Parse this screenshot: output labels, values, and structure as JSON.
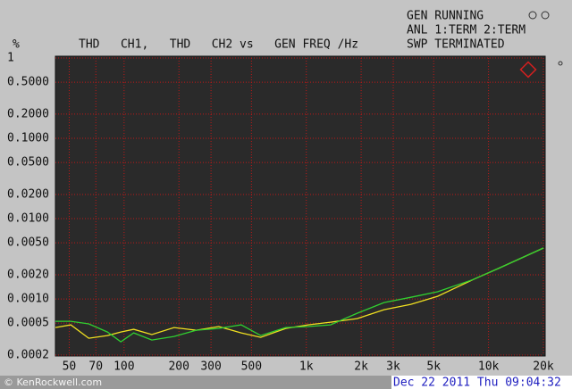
{
  "chart_data": {
    "type": "line",
    "title": "THD   CH1,   THD   CH2 vs   GEN FREQ /Hz",
    "ylabel": "%",
    "status": [
      "GEN RUNNING",
      "ANL 1:TERM 2:TERM",
      "SWP TERMINATED"
    ],
    "watermark": "© KenRockwell.com",
    "timestamp": "Dec 22 2011 Thu 09:04:32",
    "xscale": "log",
    "yscale": "log",
    "grid": true,
    "xlim": [
      42,
      20000
    ],
    "ylim": [
      0.0002,
      1
    ],
    "xticks": [
      50,
      70,
      100,
      200,
      300,
      500,
      {
        "value": 1000,
        "label": "1k"
      },
      {
        "value": 2000,
        "label": "2k"
      },
      {
        "value": 3000,
        "label": "3k"
      },
      {
        "value": 5000,
        "label": "5k"
      },
      {
        "value": 10000,
        "label": "10k"
      },
      {
        "value": 20000,
        "label": "20k"
      }
    ],
    "yticks": [
      1,
      {
        "value": 0.5,
        "label": "0.5000"
      },
      {
        "value": 0.2,
        "label": "0.2000"
      },
      {
        "value": 0.1,
        "label": "0.1000"
      },
      {
        "value": 0.05,
        "label": "0.0500"
      },
      {
        "value": 0.02,
        "label": "0.0200"
      },
      {
        "value": 0.01,
        "label": "0.0100"
      },
      {
        "value": 0.005,
        "label": "0.0050"
      },
      {
        "value": 0.002,
        "label": "0.0020"
      },
      {
        "value": 0.001,
        "label": "0.0010"
      },
      {
        "value": 0.0005,
        "label": "0.0005"
      },
      {
        "value": 0.0002,
        "label": "0.0002"
      }
    ],
    "x": [
      42,
      51,
      64,
      81,
      96,
      113,
      142,
      188,
      249,
      331,
      439,
      562,
      771,
      1023,
      1357,
      1901,
      2669,
      3748,
      5255,
      8260,
      11580,
      20000
    ],
    "series": [
      {
        "color": "#f0e020",
        "values": [
          0.000441,
          0.000476,
          0.000324,
          0.00035,
          0.000388,
          0.000419,
          0.00036,
          0.000441,
          0.000408,
          0.000453,
          0.000378,
          0.000333,
          0.00043,
          0.000476,
          0.000514,
          0.00057,
          0.000736,
          0.000857,
          0.00108,
          0.00175,
          0.00245,
          0.0043
        ]
      },
      {
        "color": "#30d030",
        "values": [
          0.000527,
          0.000527,
          0.000489,
          0.000388,
          0.000293,
          0.000378,
          0.000308,
          0.000341,
          0.000408,
          0.00043,
          0.000476,
          0.00035,
          0.000441,
          0.000453,
          0.000476,
          0.000664,
          0.000903,
          0.00105,
          0.00123,
          0.00175,
          0.00245,
          0.0043
        ]
      }
    ]
  }
}
